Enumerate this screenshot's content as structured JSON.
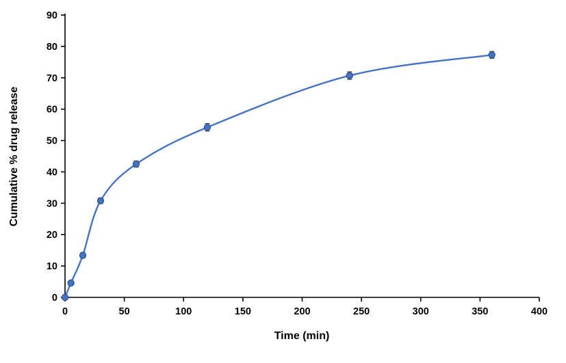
{
  "chart_data": {
    "type": "line",
    "x": [
      0,
      5,
      15,
      30,
      60,
      120,
      240,
      360
    ],
    "y": [
      0,
      4.6,
      13.4,
      30.8,
      42.5,
      54.2,
      70.7,
      77.3
    ],
    "y_error": [
      0,
      0.6,
      0.9,
      0.9,
      1.0,
      1.2,
      1.2,
      1.1
    ],
    "series_name": "Cumulative drug release",
    "title": "",
    "xlabel": "Time (min)",
    "ylabel": "Cumulative % drug release",
    "xlim": [
      0,
      400
    ],
    "ylim": [
      0,
      90
    ],
    "x_ticks": [
      0,
      50,
      100,
      150,
      200,
      250,
      300,
      350,
      400
    ],
    "y_ticks": [
      0,
      10,
      20,
      30,
      40,
      50,
      60,
      70,
      80,
      90
    ],
    "grid": "off",
    "legend": "none",
    "line_color": "#4472C4",
    "marker_edge_color": "#2F528F",
    "error_bar_color": "#3B3838",
    "axis_color": "#000000"
  }
}
